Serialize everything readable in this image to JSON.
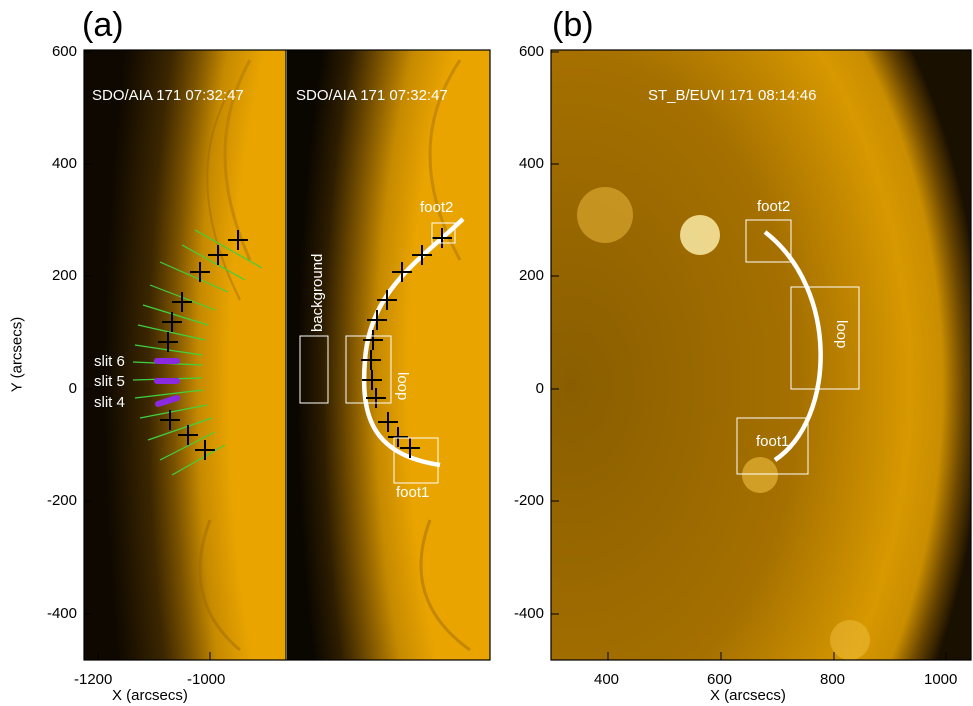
{
  "panels": {
    "a": {
      "letter": "(a)",
      "left_title": "SDO/AIA 171 07:32:47",
      "right_title": "SDO/AIA 171 07:32:47",
      "x_ticks": [
        "-1200",
        "-1000"
      ],
      "y_ticks": [
        "600",
        "400",
        "200",
        "0",
        "-200",
        "-400"
      ],
      "xlabel": "X (arcsecs)",
      "ylabel": "Y (arcsecs)",
      "slits": [
        "slit 6",
        "slit 5",
        "slit 4"
      ],
      "labels": {
        "background": "background",
        "loop": "loop",
        "foot1": "foot1",
        "foot2": "foot2"
      }
    },
    "b": {
      "letter": "(b)",
      "title": "ST_B/EUVI 171 08:14:46",
      "x_ticks": [
        "400",
        "600",
        "800",
        "1000"
      ],
      "y_ticks": [
        "600",
        "400",
        "200",
        "0",
        "-200",
        "-400"
      ],
      "xlabel": "X (arcsecs)",
      "labels": {
        "foot1": "foot1",
        "foot2": "foot2",
        "loop": "loop"
      }
    }
  },
  "colors": {
    "sun_bright": "#f5b500",
    "sun_mid": "#b07a00",
    "sun_dark": "#2a1a00",
    "slit_green": "#3fd23f",
    "slit_purple": "#8a2be2"
  }
}
